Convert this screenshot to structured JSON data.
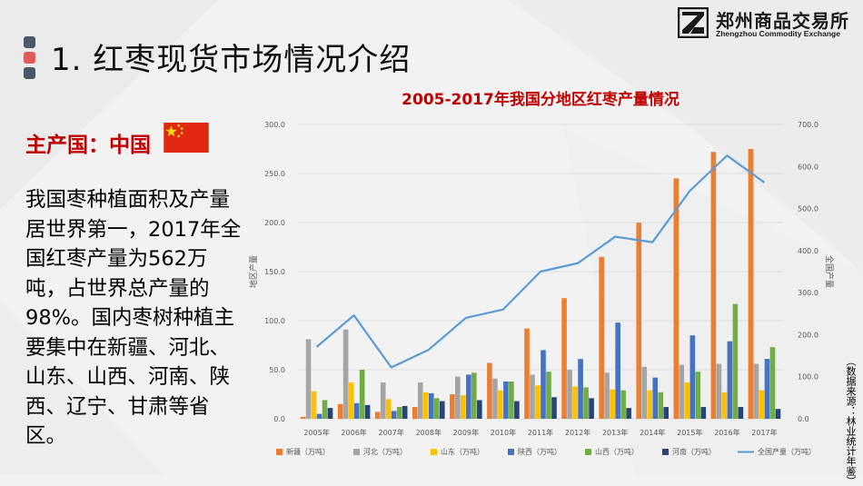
{
  "header": {
    "title": "1. 红枣现货市场情况介绍",
    "bullet_colors": [
      "#4a5868",
      "#e05a5a",
      "#4a5868"
    ]
  },
  "logo": {
    "name_cn": "郑州商品交易所",
    "name_en": "Zhengzhou Commodity Exchange",
    "icon": "zce-logo-icon"
  },
  "left": {
    "origin_label": "主产国：中国",
    "flag_icon": "china-flag-icon",
    "description": "我国枣种植面积及产量居世界第一，2017年全国红枣产量为562万吨，占世界总产量的98%。国内枣树种植主要集中在新疆、河北、山东、山西、河南、陕西、辽宁、甘肃等省区。"
  },
  "source_note": "（数据来源：林业统计年鉴）",
  "chart_data": {
    "type": "bar",
    "title": "2005-2017年我国分地区红枣产量情况",
    "categories": [
      "2005年",
      "2006年",
      "2007年",
      "2008年",
      "2009年",
      "2010年",
      "2011年",
      "2012年",
      "2013年",
      "2014年",
      "2015年",
      "2016年",
      "2017年"
    ],
    "ylabel": "地区产量",
    "y2label": "全国产量",
    "ylim": [
      0,
      300
    ],
    "y2lim": [
      0,
      700
    ],
    "yticks": [
      "0.0",
      "50.0",
      "100.0",
      "150.0",
      "200.0",
      "250.0",
      "300.0"
    ],
    "y2ticks": [
      "0.0",
      "100.0",
      "200.0",
      "300.0",
      "400.0",
      "500.0",
      "600.0",
      "700.0"
    ],
    "grid": true,
    "legend_position": "bottom",
    "series": [
      {
        "name": "新疆（万吨）",
        "type": "bar",
        "axis": "left",
        "color": "#ed7d31",
        "values": [
          2,
          15,
          7,
          12,
          25,
          57,
          92,
          123,
          165,
          200,
          245,
          272,
          275
        ]
      },
      {
        "name": "河北（万吨）",
        "type": "bar",
        "axis": "left",
        "color": "#a5a5a5",
        "values": [
          81,
          91,
          37,
          37,
          43,
          41,
          45,
          50,
          47,
          53,
          55,
          56,
          56
        ]
      },
      {
        "name": "山东（万吨）",
        "type": "bar",
        "axis": "left",
        "color": "#ffc000",
        "values": [
          28,
          37,
          20,
          27,
          24,
          29,
          34,
          33,
          30,
          29,
          37,
          27,
          29
        ]
      },
      {
        "name": "陕西（万吨）",
        "type": "bar",
        "axis": "left",
        "color": "#4472c4",
        "values": [
          5,
          16,
          8,
          26,
          45,
          38,
          70,
          61,
          98,
          42,
          85,
          79,
          61
        ]
      },
      {
        "name": "山西（万吨）",
        "type": "bar",
        "axis": "left",
        "color": "#70ad47",
        "values": [
          19,
          50,
          12,
          21,
          47,
          38,
          48,
          32,
          29,
          27,
          48,
          117,
          73
        ]
      },
      {
        "name": "河南（万吨）",
        "type": "bar",
        "axis": "left",
        "color": "#264478",
        "values": [
          11,
          14,
          13,
          18,
          19,
          18,
          22,
          21,
          11,
          12,
          12,
          12,
          10
        ]
      },
      {
        "name": "全国产量（万吨）",
        "type": "line",
        "axis": "right",
        "color": "#5b9bd5",
        "values": [
          171,
          246,
          122,
          164,
          240,
          260,
          350,
          370,
          433,
          420,
          542,
          626,
          562
        ]
      }
    ]
  }
}
